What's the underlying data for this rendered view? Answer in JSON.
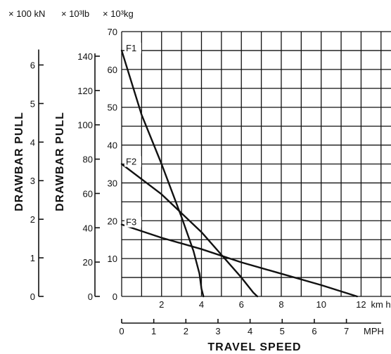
{
  "chart_data": {
    "type": "line",
    "title": "",
    "xlabel": "TRAVEL SPEED",
    "ylabel": "DRAWBAR PULL",
    "units": {
      "kn": "× 100 kN",
      "lb": "× 10³lb",
      "kg": "× 10³kg",
      "kmh": "km h",
      "mph": "MPH"
    },
    "x_kmh": {
      "range": [
        0,
        13.5
      ],
      "ticks": [
        "2",
        "4",
        "6",
        "8",
        "10",
        "12"
      ],
      "tick_values": [
        2,
        4,
        6,
        8,
        10,
        12
      ],
      "unit_label": "km h"
    },
    "x_mph": {
      "ticks": [
        "0",
        "1",
        "2",
        "3",
        "4",
        "5",
        "6",
        "7"
      ],
      "tick_values": [
        0,
        1,
        2,
        3,
        4,
        5,
        6,
        7
      ],
      "unit_label": "MPH"
    },
    "y_kg": {
      "range": [
        0,
        70
      ],
      "ticks": [
        "0",
        "10",
        "20",
        "30",
        "40",
        "50",
        "60",
        "70"
      ],
      "tick_values": [
        0,
        10,
        20,
        30,
        40,
        50,
        60,
        70
      ]
    },
    "y_lb": {
      "ticks": [
        "0",
        "20",
        "40",
        "60",
        "80",
        "100",
        "120",
        "140"
      ],
      "tick_values": [
        0,
        20,
        40,
        60,
        80,
        100,
        120,
        140
      ]
    },
    "y_kn": {
      "ticks": [
        "0",
        "1",
        "2",
        "3",
        "4",
        "5",
        "6"
      ],
      "tick_values": [
        0,
        1,
        2,
        3,
        4,
        5,
        6
      ]
    },
    "grid": true,
    "series": [
      {
        "name": "F1",
        "points": [
          [
            0,
            65
          ],
          [
            1,
            48
          ],
          [
            2,
            35
          ],
          [
            3,
            21
          ],
          [
            3.6,
            12
          ],
          [
            3.9,
            6
          ],
          [
            4.0,
            2
          ],
          [
            4.1,
            0
          ]
        ]
      },
      {
        "name": "F2",
        "points": [
          [
            0,
            35
          ],
          [
            2,
            27
          ],
          [
            4,
            17
          ],
          [
            5,
            11
          ],
          [
            6,
            5
          ],
          [
            6.6,
            1
          ],
          [
            6.8,
            0
          ]
        ]
      },
      {
        "name": "F3",
        "points": [
          [
            0,
            19
          ],
          [
            2,
            15.5
          ],
          [
            4,
            12.5
          ],
          [
            6,
            9
          ],
          [
            8,
            6
          ],
          [
            10,
            3
          ],
          [
            11.8,
            0
          ]
        ]
      }
    ]
  }
}
